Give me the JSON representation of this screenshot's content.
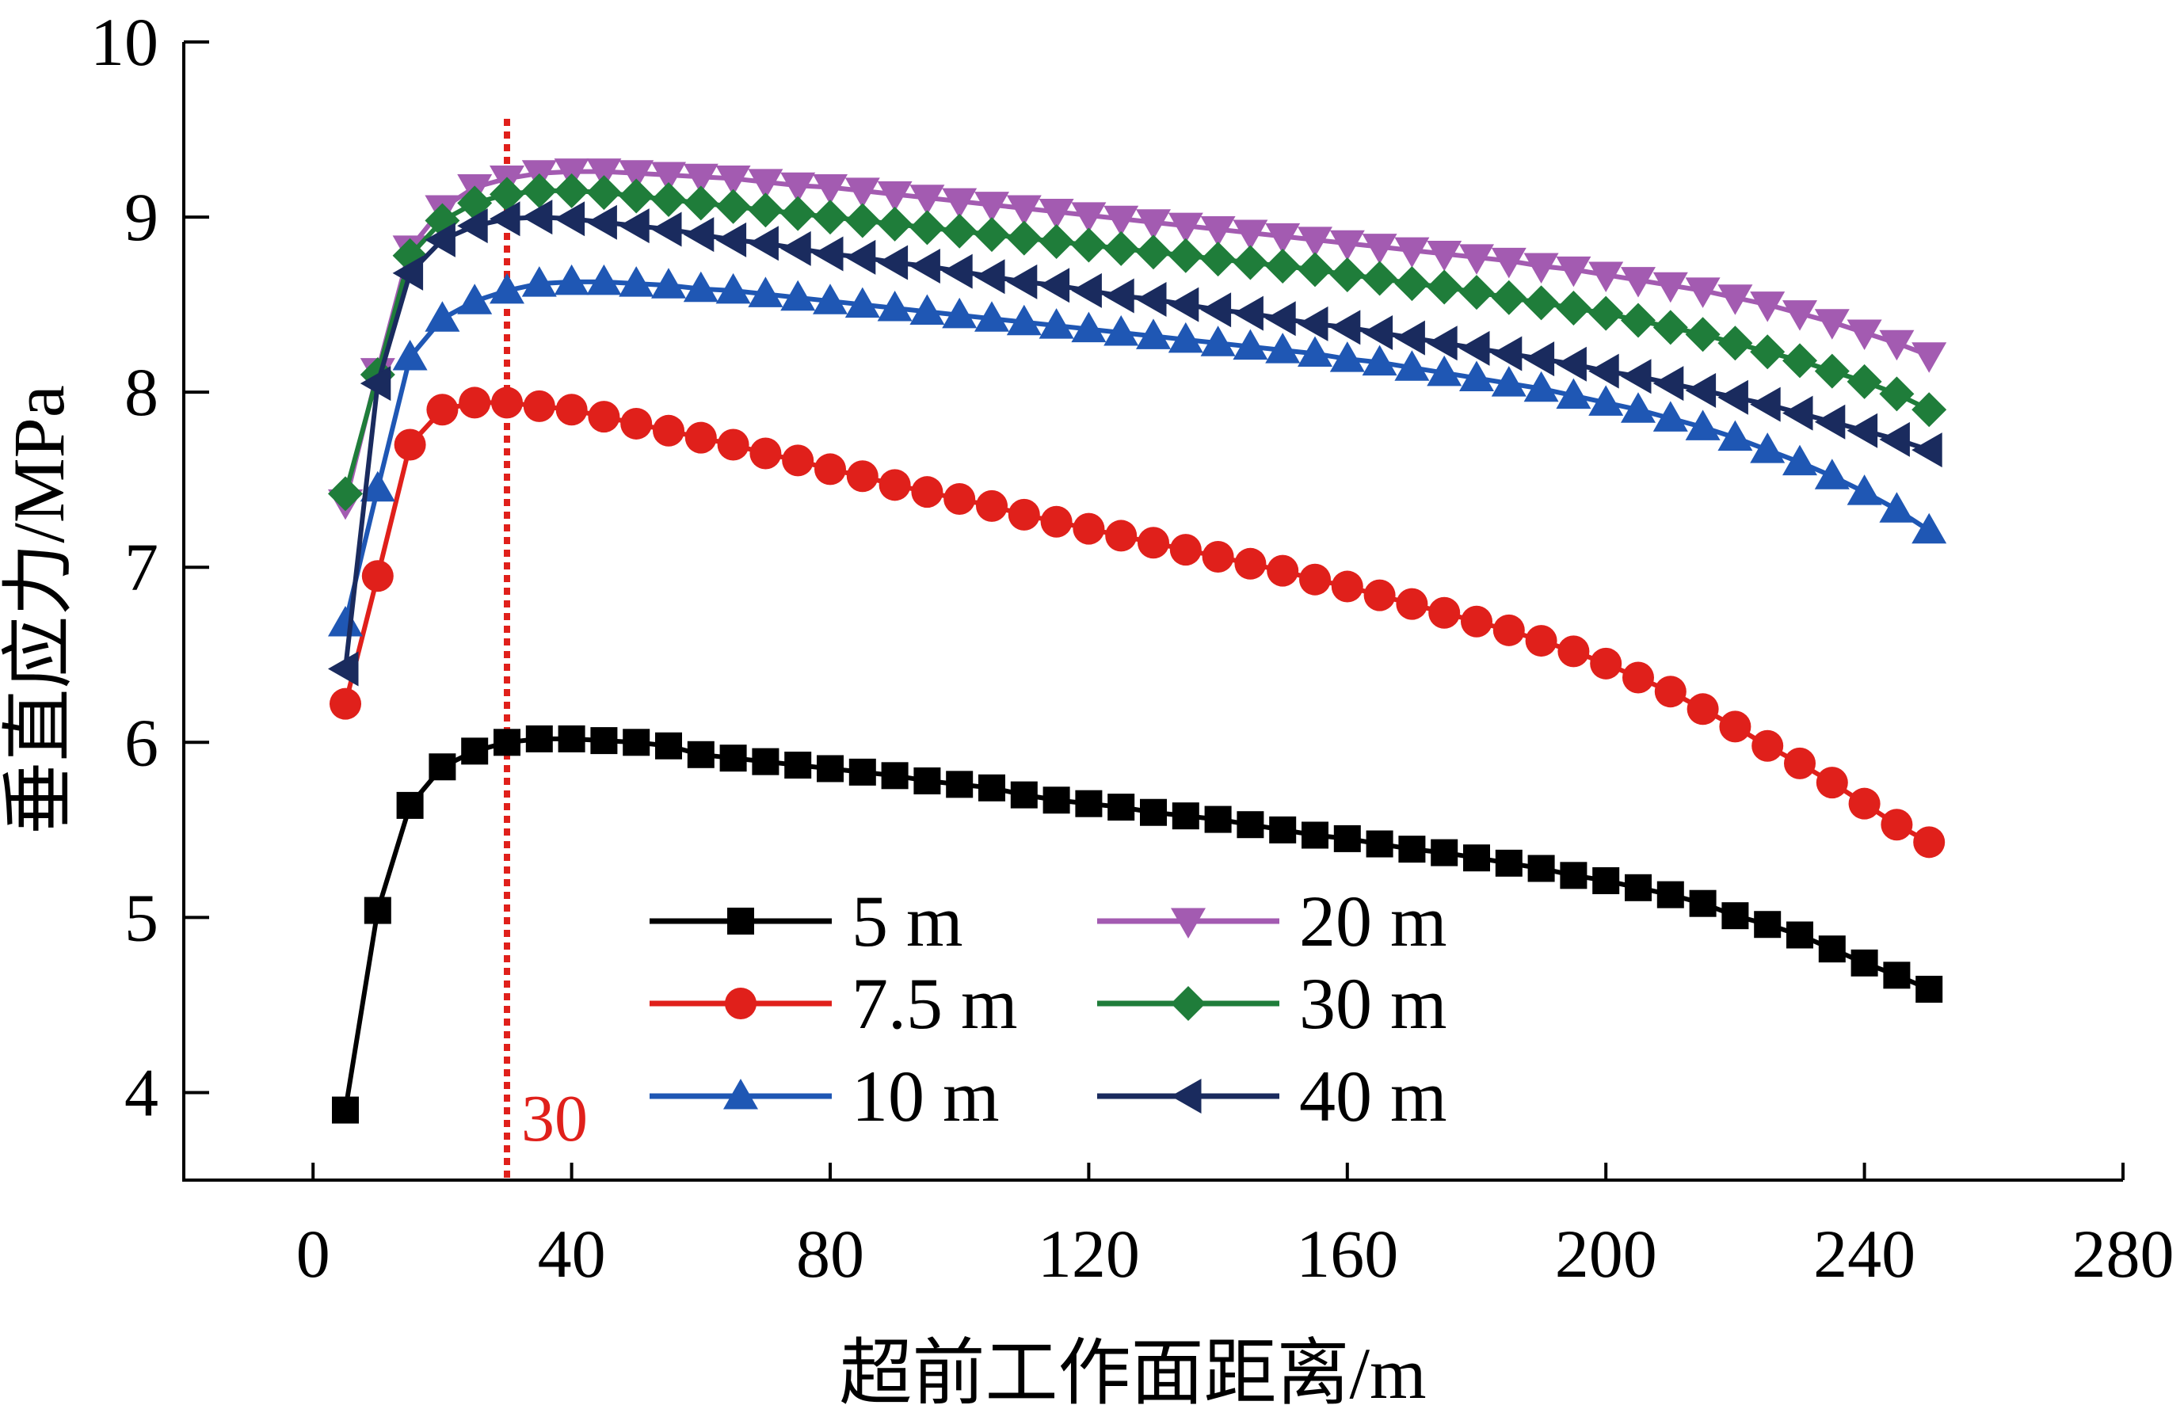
{
  "chart_data": {
    "type": "line",
    "xlabel": "超前工作面距离/m",
    "ylabel": "垂直应力/MPa",
    "xlim": [
      -20,
      280
    ],
    "ylim": [
      3.5,
      10
    ],
    "x_ticks": [
      0,
      40,
      80,
      120,
      160,
      200,
      240,
      280
    ],
    "y_ticks": [
      4,
      5,
      6,
      7,
      8,
      9,
      10
    ],
    "x_tick_labels": [
      "0",
      "40",
      "80",
      "120",
      "160",
      "200",
      "240",
      "280"
    ],
    "y_tick_labels": [
      "4",
      "5",
      "6",
      "7",
      "8",
      "9",
      "10"
    ],
    "legend_position": "inside-bottom-center",
    "grid": false,
    "reference_line": {
      "x": 30,
      "label": "30",
      "color": "#e0201b",
      "style": "dotted"
    },
    "x": [
      5,
      10,
      15,
      20,
      25,
      30,
      35,
      40,
      45,
      50,
      55,
      60,
      65,
      70,
      75,
      80,
      85,
      90,
      95,
      100,
      105,
      110,
      115,
      120,
      125,
      130,
      135,
      140,
      145,
      150,
      155,
      160,
      165,
      170,
      175,
      180,
      185,
      190,
      195,
      200,
      205,
      210,
      215,
      220,
      225,
      230,
      235,
      240,
      245,
      250
    ],
    "series": [
      {
        "name": "5 m",
        "color": "#000000",
        "marker": "square",
        "values": [
          3.9,
          5.04,
          5.64,
          5.86,
          5.95,
          6.0,
          6.02,
          6.02,
          6.01,
          6.0,
          5.98,
          5.93,
          5.91,
          5.89,
          5.87,
          5.85,
          5.83,
          5.81,
          5.78,
          5.76,
          5.74,
          5.7,
          5.67,
          5.65,
          5.63,
          5.6,
          5.58,
          5.56,
          5.53,
          5.5,
          5.47,
          5.45,
          5.42,
          5.39,
          5.37,
          5.34,
          5.31,
          5.28,
          5.24,
          5.21,
          5.17,
          5.13,
          5.08,
          5.01,
          4.96,
          4.9,
          4.82,
          4.74,
          4.67,
          4.59
        ]
      },
      {
        "name": "7.5 m",
        "color": "#e0201b",
        "marker": "circle",
        "values": [
          6.22,
          6.95,
          7.7,
          7.9,
          7.94,
          7.94,
          7.92,
          7.9,
          7.86,
          7.82,
          7.78,
          7.74,
          7.7,
          7.65,
          7.61,
          7.56,
          7.52,
          7.47,
          7.43,
          7.39,
          7.35,
          7.3,
          7.26,
          7.22,
          7.18,
          7.14,
          7.1,
          7.06,
          7.02,
          6.98,
          6.93,
          6.89,
          6.84,
          6.79,
          6.74,
          6.69,
          6.64,
          6.58,
          6.52,
          6.45,
          6.37,
          6.29,
          6.19,
          6.09,
          5.98,
          5.88,
          5.77,
          5.65,
          5.53,
          5.43
        ]
      },
      {
        "name": "10 m",
        "color": "#1f57b4",
        "marker": "triangle-up",
        "values": [
          6.68,
          7.45,
          8.2,
          8.42,
          8.52,
          8.58,
          8.62,
          8.63,
          8.63,
          8.62,
          8.61,
          8.59,
          8.58,
          8.56,
          8.54,
          8.52,
          8.5,
          8.48,
          8.46,
          8.44,
          8.42,
          8.4,
          8.38,
          8.36,
          8.34,
          8.32,
          8.3,
          8.28,
          8.26,
          8.24,
          8.22,
          8.19,
          8.17,
          8.14,
          8.11,
          8.08,
          8.05,
          8.02,
          7.98,
          7.94,
          7.9,
          7.85,
          7.8,
          7.74,
          7.67,
          7.6,
          7.52,
          7.43,
          7.33,
          7.21
        ]
      },
      {
        "name": "20 m",
        "color": "#a35bb1",
        "marker": "triangle-down",
        "values": [
          7.37,
          8.12,
          8.82,
          9.05,
          9.17,
          9.22,
          9.25,
          9.26,
          9.26,
          9.25,
          9.24,
          9.23,
          9.22,
          9.2,
          9.18,
          9.17,
          9.15,
          9.13,
          9.11,
          9.09,
          9.07,
          9.05,
          9.03,
          9.01,
          8.99,
          8.97,
          8.95,
          8.93,
          8.91,
          8.89,
          8.87,
          8.85,
          8.83,
          8.81,
          8.79,
          8.77,
          8.75,
          8.72,
          8.7,
          8.67,
          8.64,
          8.61,
          8.58,
          8.54,
          8.5,
          8.45,
          8.4,
          8.34,
          8.28,
          8.21
        ]
      },
      {
        "name": "30 m",
        "color": "#1f7d3a",
        "marker": "diamond",
        "values": [
          7.42,
          8.1,
          8.78,
          8.98,
          9.08,
          9.13,
          9.15,
          9.15,
          9.14,
          9.12,
          9.1,
          9.08,
          9.06,
          9.04,
          9.02,
          9.0,
          8.98,
          8.96,
          8.94,
          8.92,
          8.9,
          8.88,
          8.86,
          8.84,
          8.82,
          8.8,
          8.78,
          8.76,
          8.74,
          8.72,
          8.7,
          8.67,
          8.65,
          8.62,
          8.6,
          8.57,
          8.54,
          8.51,
          8.48,
          8.45,
          8.41,
          8.37,
          8.33,
          8.28,
          8.23,
          8.18,
          8.12,
          8.06,
          7.99,
          7.9
        ]
      },
      {
        "name": "40 m",
        "color": "#1a2b5e",
        "marker": "triangle-left",
        "values": [
          6.42,
          8.05,
          8.68,
          8.87,
          8.95,
          8.99,
          9.0,
          8.99,
          8.97,
          8.95,
          8.93,
          8.9,
          8.87,
          8.85,
          8.82,
          8.79,
          8.77,
          8.74,
          8.72,
          8.69,
          8.66,
          8.63,
          8.61,
          8.58,
          8.55,
          8.53,
          8.5,
          8.47,
          8.45,
          8.42,
          8.39,
          8.37,
          8.34,
          8.31,
          8.28,
          8.25,
          8.22,
          8.19,
          8.16,
          8.12,
          8.09,
          8.05,
          8.01,
          7.97,
          7.93,
          7.88,
          7.83,
          7.78,
          7.73,
          7.67
        ]
      }
    ]
  }
}
